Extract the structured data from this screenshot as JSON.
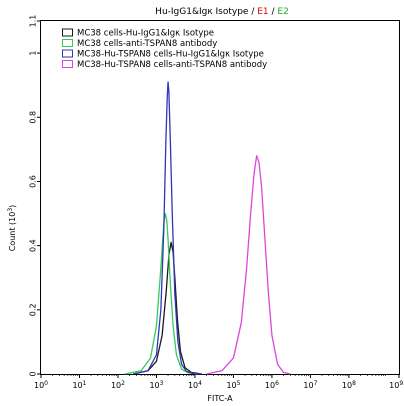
{
  "chart_data": {
    "type": "line",
    "title": {
      "prefix": "Hu-IgG1&Igκ Isotype / ",
      "gate1": "E1",
      "separator": " / ",
      "gate2": "E2",
      "gate1_color": "#dd0000",
      "gate2_color": "#22aa22"
    },
    "xlabel": "FITC-A",
    "ylabel": "Count  (10",
    "ylabel_exp": "3",
    "ylabel_suffix": ")",
    "x_scale": "log",
    "xlim": [
      1,
      2000000000
    ],
    "ylim": [
      0,
      1.1
    ],
    "grid": false,
    "legend_position": "top-left",
    "x_ticks": [
      {
        "base": "10",
        "exp": "0",
        "value": 1
      },
      {
        "base": "10",
        "exp": "1",
        "value": 10
      },
      {
        "base": "10",
        "exp": "2",
        "value": 100
      },
      {
        "base": "10",
        "exp": "3",
        "value": 1000
      },
      {
        "base": "10",
        "exp": "4",
        "value": 10000
      },
      {
        "base": "10",
        "exp": "5",
        "value": 100000
      },
      {
        "base": "10",
        "exp": "6",
        "value": 1000000
      },
      {
        "base": "10",
        "exp": "7",
        "value": 10000000
      },
      {
        "base": "10",
        "exp": "8",
        "value": 100000000
      },
      {
        "base": "10",
        "exp": "9.3",
        "value": 2000000000
      }
    ],
    "y_ticks": [
      {
        "label": "0",
        "value": 0
      },
      {
        "label": "0.2",
        "value": 0.2
      },
      {
        "label": "0.4",
        "value": 0.4
      },
      {
        "label": "0.6",
        "value": 0.6
      },
      {
        "label": "0.8",
        "value": 0.8
      },
      {
        "label": "1",
        "value": 1.0
      },
      {
        "label": "1.1",
        "value": 1.1
      }
    ],
    "series": [
      {
        "name": "MC38 cells-Hu-IgG1&Igκ Isotype",
        "color": "#1a1a1a",
        "x": [
          250,
          600,
          1000,
          1400,
          1800,
          2100,
          2400,
          2700,
          3000,
          3500,
          4200,
          5500,
          8000,
          15000
        ],
        "y": [
          0,
          0.01,
          0.04,
          0.12,
          0.26,
          0.37,
          0.41,
          0.38,
          0.3,
          0.17,
          0.07,
          0.02,
          0.005,
          0
        ]
      },
      {
        "name": "MC38 cells-anti-TSPAN8 antibody",
        "color": "#33cc55",
        "x": [
          150,
          400,
          700,
          1000,
          1300,
          1550,
          1700,
          1850,
          2000,
          2300,
          2700,
          3300,
          4500,
          7000,
          12000
        ],
        "y": [
          0,
          0.01,
          0.05,
          0.15,
          0.33,
          0.47,
          0.5,
          0.48,
          0.42,
          0.28,
          0.15,
          0.06,
          0.015,
          0.003,
          0
        ]
      },
      {
        "name": "MC38-Hu-TSPAN8 cells-Hu-IgG1&Igκ Isotype",
        "color": "#3333bb",
        "x": [
          250,
          600,
          1000,
          1300,
          1550,
          1750,
          1900,
          2000,
          2100,
          2300,
          2600,
          3000,
          3600,
          4500,
          6000,
          9000,
          15000
        ],
        "y": [
          0,
          0.01,
          0.06,
          0.2,
          0.45,
          0.72,
          0.86,
          0.91,
          0.88,
          0.72,
          0.48,
          0.25,
          0.1,
          0.03,
          0.008,
          0.002,
          0
        ]
      },
      {
        "name": "MC38-Hu-TSPAN8 cells-anti-TSPAN8 antibody",
        "color": "#dd44dd",
        "x": [
          20000,
          50000,
          100000,
          160000,
          220000,
          280000,
          340000,
          400000,
          460000,
          540000,
          650000,
          800000,
          1000000,
          1400000,
          2000000,
          3000000
        ],
        "y": [
          0,
          0.01,
          0.05,
          0.16,
          0.33,
          0.5,
          0.62,
          0.68,
          0.66,
          0.58,
          0.43,
          0.26,
          0.12,
          0.03,
          0.005,
          0
        ]
      }
    ]
  }
}
